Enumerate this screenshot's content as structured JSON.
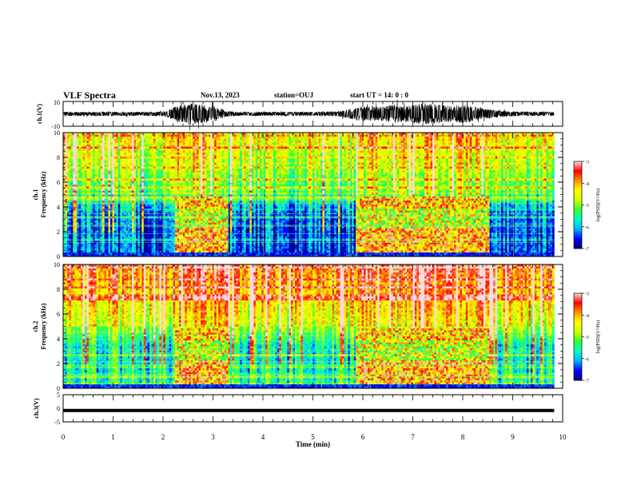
{
  "header": {
    "title": "VLF Spectra",
    "date": "Nov.13, 2023",
    "station": "station=OUJ",
    "start": "start UT = 14: 0 : 0"
  },
  "chart_data": [
    {
      "type": "line",
      "panel": "waveform-ch1",
      "ylabel": "ch.1(V)",
      "ylim": [
        -10,
        10
      ],
      "yticks": [
        "10",
        "-10"
      ],
      "xlim": [
        0,
        10
      ],
      "envelope_x": [
        0.0,
        0.5,
        1.0,
        1.5,
        2.0,
        2.3,
        2.5,
        2.8,
        3.0,
        3.3,
        3.5,
        4.0,
        4.5,
        5.0,
        5.5,
        5.8,
        6.0,
        6.3,
        6.6,
        6.9,
        7.2,
        7.5,
        7.8,
        8.0,
        8.3,
        8.6,
        9.0,
        9.5,
        9.8
      ],
      "envelope_amp": [
        1.5,
        1.5,
        1.6,
        1.5,
        1.6,
        6,
        8,
        7,
        6,
        2,
        1.5,
        1.5,
        1.6,
        1.5,
        2,
        4,
        6,
        5,
        7,
        6,
        8,
        7,
        6,
        7,
        5,
        3,
        1.8,
        1.6,
        1.5
      ]
    },
    {
      "type": "heatmap",
      "panel": "spectrogram-ch1",
      "ylabel": "ch.1",
      "ylabel2": "Frequency (kHz)",
      "ylim": [
        0,
        10
      ],
      "yticks": [
        "0",
        "2",
        "4",
        "6",
        "8",
        "10"
      ],
      "xlim": [
        0,
        10
      ],
      "colorbar_label": "log(PSD)(V²/Hz)",
      "colorbar_range": [
        -7,
        -3
      ],
      "colorbar_ticks": [
        "-3",
        "-4",
        "-5",
        "-6",
        "-7"
      ],
      "enhanced_intervals_min": [
        [
          2.25,
          3.3
        ],
        [
          5.85,
          8.55
        ]
      ],
      "data_end_min": 9.83
    },
    {
      "type": "heatmap",
      "panel": "spectrogram-ch2",
      "ylabel": "ch.2",
      "ylabel2": "Frequency (kHz)",
      "ylim": [
        0,
        10
      ],
      "yticks": [
        "0",
        "2",
        "4",
        "6",
        "8",
        "10"
      ],
      "xlim": [
        0,
        10
      ],
      "colorbar_label": "log(PSD)(V²/Hz)",
      "colorbar_range": [
        -7,
        -3
      ],
      "colorbar_ticks": [
        "-3",
        "-4",
        "-5",
        "-6",
        "-7"
      ],
      "enhanced_intervals_min": [
        [
          2.25,
          3.3
        ],
        [
          5.85,
          8.55
        ]
      ],
      "data_end_min": 9.83
    },
    {
      "type": "line",
      "panel": "waveform-ch3",
      "ylabel": "ch.3(V)",
      "ylim": [
        -5,
        5
      ],
      "yticks": [
        "5",
        "0",
        "-5"
      ],
      "xlim": [
        0,
        10
      ],
      "level": -0.8,
      "xlabel": "Time (min)",
      "xticks": [
        "0",
        "1",
        "2",
        "3",
        "4",
        "5",
        "6",
        "7",
        "8",
        "9",
        "10"
      ]
    }
  ],
  "colors": {
    "colormap": [
      "#00007a",
      "#0000ff",
      "#00b4ff",
      "#00ffc8",
      "#32ff32",
      "#d2ff00",
      "#ffff00",
      "#ff9600",
      "#ff0000",
      "#ffdcdc"
    ]
  }
}
